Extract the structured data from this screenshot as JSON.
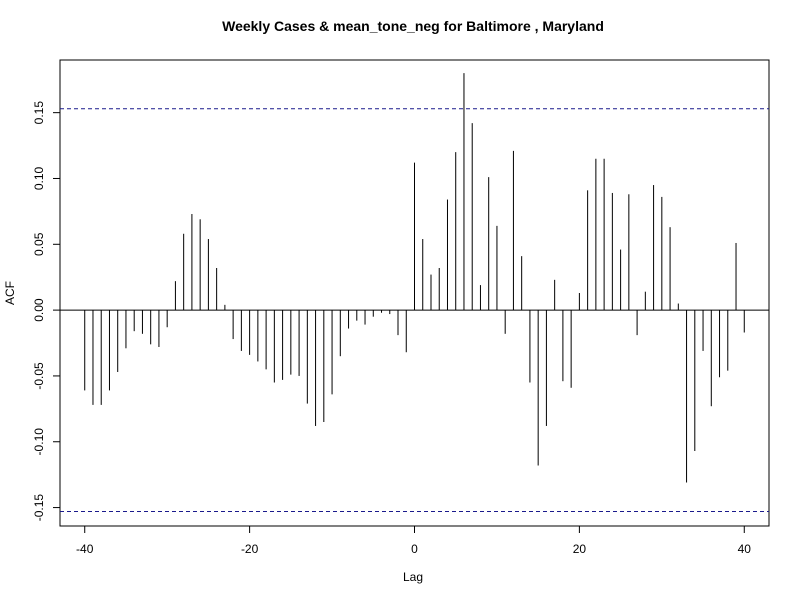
{
  "chart_data": {
    "type": "bar",
    "title": "Weekly Cases & mean_tone_neg for Baltimore , Maryland",
    "xlabel": "Lag",
    "ylabel": "ACF",
    "xlim": [
      -43,
      43
    ],
    "ylim": [
      -0.164,
      0.19
    ],
    "x_ticks": [
      {
        "value": -40,
        "label": "-40"
      },
      {
        "value": -20,
        "label": "-20"
      },
      {
        "value": 0,
        "label": "0"
      },
      {
        "value": 20,
        "label": "20"
      },
      {
        "value": 40,
        "label": "40"
      }
    ],
    "y_ticks": [
      {
        "value": -0.15,
        "label": "-0.15"
      },
      {
        "value": -0.1,
        "label": "-0.10"
      },
      {
        "value": -0.05,
        "label": "-0.05"
      },
      {
        "value": 0.0,
        "label": "0.00"
      },
      {
        "value": 0.05,
        "label": "0.05"
      },
      {
        "value": 0.1,
        "label": "0.10"
      },
      {
        "value": 0.15,
        "label": "0.15"
      }
    ],
    "confidence_bound": 0.153,
    "lags": [
      -40,
      -39,
      -38,
      -37,
      -36,
      -35,
      -34,
      -33,
      -32,
      -31,
      -30,
      -29,
      -28,
      -27,
      -26,
      -25,
      -24,
      -23,
      -22,
      -21,
      -20,
      -19,
      -18,
      -17,
      -16,
      -15,
      -14,
      -13,
      -12,
      -11,
      -10,
      -9,
      -8,
      -7,
      -6,
      -5,
      -4,
      -3,
      -2,
      -1,
      0,
      1,
      2,
      3,
      4,
      5,
      6,
      7,
      8,
      9,
      10,
      11,
      12,
      13,
      14,
      15,
      16,
      17,
      18,
      19,
      20,
      21,
      22,
      23,
      24,
      25,
      26,
      27,
      28,
      29,
      30,
      31,
      32,
      33,
      34,
      35,
      36,
      37,
      38,
      39,
      40
    ],
    "values": [
      -0.061,
      -0.072,
      -0.072,
      -0.061,
      -0.047,
      -0.029,
      -0.016,
      -0.018,
      -0.026,
      -0.028,
      -0.013,
      0.022,
      0.058,
      0.073,
      0.069,
      0.054,
      0.032,
      0.004,
      -0.022,
      -0.031,
      -0.034,
      -0.039,
      -0.045,
      -0.055,
      -0.053,
      -0.049,
      -0.05,
      -0.071,
      -0.088,
      -0.085,
      -0.064,
      -0.035,
      -0.014,
      -0.008,
      -0.011,
      -0.005,
      -0.002,
      -0.003,
      -0.019,
      -0.032,
      0.112,
      0.054,
      0.027,
      0.032,
      0.084,
      0.12,
      0.18,
      0.142,
      0.019,
      0.101,
      0.064,
      -0.018,
      0.121,
      0.041,
      -0.055,
      -0.118,
      -0.088,
      0.023,
      -0.054,
      -0.059,
      0.013,
      0.091,
      0.115,
      0.115,
      0.089,
      0.046,
      0.088,
      -0.019,
      0.014,
      0.095,
      0.086,
      0.063,
      0.005,
      -0.131,
      -0.107,
      -0.031,
      -0.073,
      -0.051,
      -0.046,
      0.051,
      -0.017
    ]
  }
}
